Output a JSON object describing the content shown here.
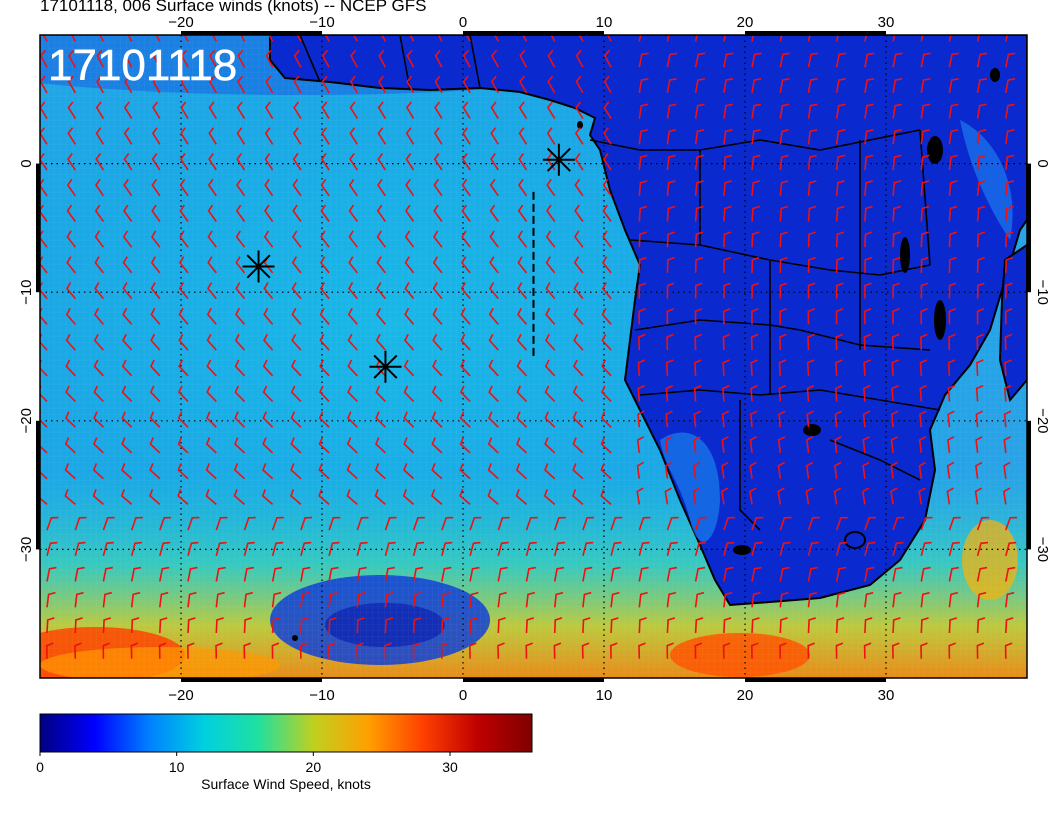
{
  "title": "17101118, 006 Surface winds (knots) -- NCEP GFS",
  "stamp": "17101118",
  "map": {
    "lon_range": [
      -30,
      40
    ],
    "lat_range": [
      -40,
      10
    ],
    "x_ticks": [
      {
        "value": -20,
        "label": "−20"
      },
      {
        "value": -10,
        "label": "−10"
      },
      {
        "value": 0,
        "label": "0"
      },
      {
        "value": 10,
        "label": "10"
      },
      {
        "value": 20,
        "label": "20"
      },
      {
        "value": 30,
        "label": "30"
      }
    ],
    "y_ticks": [
      {
        "value": 0,
        "label": "0"
      },
      {
        "value": -10,
        "label": "−10"
      },
      {
        "value": -20,
        "label": "−20"
      },
      {
        "value": -30,
        "label": "−30"
      }
    ],
    "markers": [
      {
        "lon": 6.8,
        "lat": 0.3
      },
      {
        "lon": -14.5,
        "lat": -8.0
      },
      {
        "lon": -5.5,
        "lat": -15.8
      }
    ],
    "track_lon": 5.0,
    "track_lat": [
      -2.2,
      -15.0
    ],
    "grid": true,
    "barb_color": "#ee1111"
  },
  "colorbar": {
    "label": "Surface Wind Speed, knots",
    "ticks": [
      {
        "value": 0,
        "label": "0"
      },
      {
        "value": 10,
        "label": "10"
      },
      {
        "value": 20,
        "label": "20"
      },
      {
        "value": 30,
        "label": "30"
      }
    ],
    "range": [
      0,
      36
    ],
    "colors": [
      "#00007f",
      "#0000ff",
      "#0080ff",
      "#00d0e0",
      "#20e0a0",
      "#c0d020",
      "#ffa000",
      "#ff4000",
      "#c00000",
      "#7f0000"
    ]
  }
}
